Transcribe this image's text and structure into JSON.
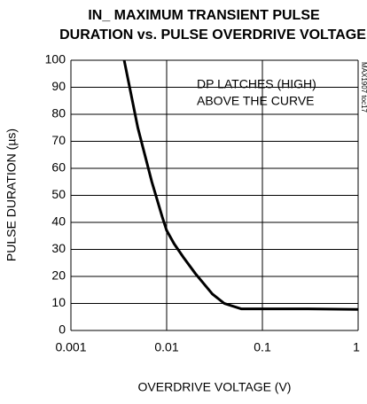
{
  "chart_data": {
    "type": "line",
    "title": [
      "IN_ MAXIMUM TRANSIENT PULSE",
      "DURATION vs. PULSE OVERDRIVE VOLTAGE"
    ],
    "xlabel": "OVERDRIVE VOLTAGE (V)",
    "ylabel": "PULSE DURATION (µs)",
    "annotations": [
      "DP LATCHES (HIGH)",
      "ABOVE THE CURVE",
      "MAX1907 toc17"
    ],
    "x": [
      0.0036,
      0.005,
      0.007,
      0.009,
      0.01,
      0.012,
      0.015,
      0.02,
      0.03,
      0.04,
      0.06,
      0.1,
      0.3,
      1
    ],
    "series": [
      {
        "name": "PULSE DURATION",
        "color": "#000000",
        "values": [
          100,
          75,
          55,
          42,
          37,
          32,
          27,
          21,
          13.5,
          10,
          8,
          8,
          8,
          7.8
        ]
      }
    ],
    "xscale": "log",
    "xlim": [
      0.001,
      1
    ],
    "xticks": [
      0.001,
      0.01,
      0.1,
      1
    ],
    "ylim": [
      0,
      100
    ],
    "yticks": [
      0,
      10,
      20,
      30,
      40,
      50,
      60,
      70,
      80,
      90,
      100
    ],
    "grid": true
  }
}
